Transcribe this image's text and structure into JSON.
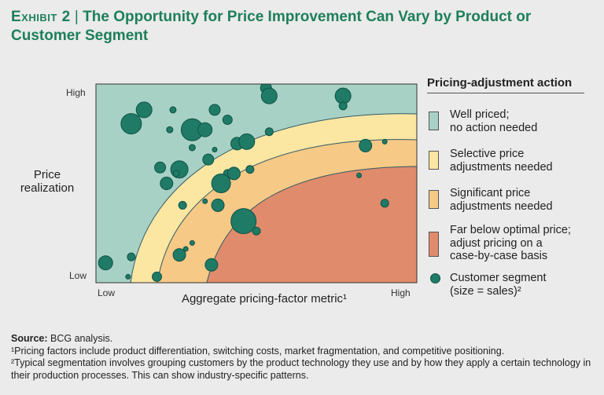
{
  "title": {
    "exhibit": "Exhibit 2",
    "separator": "|",
    "text": "The Opportunity for Price Improvement Can Vary by Product or Customer Segment"
  },
  "chart_data": {
    "type": "scatter",
    "title": "The Opportunity for Price Improvement Can Vary by Product or Customer Segment",
    "xlabel": "Aggregate pricing-factor metric¹",
    "ylabel": "Price realization",
    "x_ticks": [
      "Low",
      "High"
    ],
    "y_ticks": [
      "High",
      "Low"
    ],
    "xlim": [
      0,
      100
    ],
    "ylim": [
      0,
      100
    ],
    "zones": [
      {
        "name": "Well priced; no action needed",
        "color": "#a8d1c6"
      },
      {
        "name": "Selective price adjustments needed",
        "color": "#fbe6a2"
      },
      {
        "name": "Significant price adjustments needed",
        "color": "#f7c986"
      },
      {
        "name": "Far below optimal price; adjust pricing on a case-by-case basis",
        "color": "#e08b6b"
      }
    ],
    "series": [
      {
        "name": "Customer segment (size = sales)",
        "color": "#1f7a66",
        "points": [
          {
            "x": 11,
            "y": 80,
            "size": 13
          },
          {
            "x": 15,
            "y": 87,
            "size": 10
          },
          {
            "x": 24,
            "y": 87,
            "size": 4
          },
          {
            "x": 23,
            "y": 77,
            "size": 4
          },
          {
            "x": 30,
            "y": 77,
            "size": 14
          },
          {
            "x": 34,
            "y": 77,
            "size": 9
          },
          {
            "x": 37,
            "y": 87,
            "size": 7
          },
          {
            "x": 30,
            "y": 68,
            "size": 4
          },
          {
            "x": 35,
            "y": 62,
            "size": 7
          },
          {
            "x": 20,
            "y": 58,
            "size": 7
          },
          {
            "x": 26,
            "y": 57,
            "size": 11
          },
          {
            "x": 22,
            "y": 50,
            "size": 8
          },
          {
            "x": 25,
            "y": 55,
            "size": 4
          },
          {
            "x": 37,
            "y": 67,
            "size": 3
          },
          {
            "x": 41,
            "y": 82,
            "size": 6
          },
          {
            "x": 44,
            "y": 70,
            "size": 8
          },
          {
            "x": 47,
            "y": 71,
            "size": 10
          },
          {
            "x": 41,
            "y": 55,
            "size": 5
          },
          {
            "x": 43,
            "y": 55,
            "size": 8
          },
          {
            "x": 39,
            "y": 50,
            "size": 12
          },
          {
            "x": 48,
            "y": 57,
            "size": 5
          },
          {
            "x": 54,
            "y": 76,
            "size": 5
          },
          {
            "x": 53,
            "y": 98,
            "size": 7
          },
          {
            "x": 54,
            "y": 94,
            "size": 10
          },
          {
            "x": 77,
            "y": 94,
            "size": 10
          },
          {
            "x": 77,
            "y": 89,
            "size": 5
          },
          {
            "x": 84,
            "y": 69,
            "size": 8
          },
          {
            "x": 90,
            "y": 71,
            "size": 3
          },
          {
            "x": 82,
            "y": 54,
            "size": 3
          },
          {
            "x": 90,
            "y": 40,
            "size": 5
          },
          {
            "x": 27,
            "y": 39,
            "size": 5
          },
          {
            "x": 34,
            "y": 41,
            "size": 3
          },
          {
            "x": 38,
            "y": 39,
            "size": 8
          },
          {
            "x": 46,
            "y": 31,
            "size": 16
          },
          {
            "x": 50,
            "y": 26,
            "size": 5
          },
          {
            "x": 3,
            "y": 10,
            "size": 9
          },
          {
            "x": 11,
            "y": 13,
            "size": 5
          },
          {
            "x": 10,
            "y": 3,
            "size": 3
          },
          {
            "x": 19,
            "y": 3,
            "size": 6
          },
          {
            "x": 26,
            "y": 14,
            "size": 8
          },
          {
            "x": 30,
            "y": 20,
            "size": 3
          },
          {
            "x": 28,
            "y": 17,
            "size": 3
          },
          {
            "x": 36,
            "y": 9,
            "size": 8
          }
        ]
      }
    ],
    "legend": {
      "title": "Pricing-adjustment action",
      "position": "right"
    }
  },
  "legend": {
    "title": "Pricing-adjustment action",
    "items": [
      {
        "line1": "Well priced;",
        "line2": "no action needed",
        "line3": ""
      },
      {
        "line1": "Selective price",
        "line2": "adjustments needed",
        "line3": ""
      },
      {
        "line1": "Significant price",
        "line2": "adjustments needed",
        "line3": ""
      },
      {
        "line1": "Far below optimal price;",
        "line2": "adjust pricing on a",
        "line3": "case-by-case basis"
      },
      {
        "line1": "Customer segment",
        "line2": "(size = sales)²",
        "line3": ""
      }
    ]
  },
  "axes": {
    "y_label_line1": "Price",
    "y_label_line2": "realization",
    "x_label": "Aggregate pricing-factor metric¹",
    "y_high": "High",
    "y_low": "Low",
    "x_low": "Low",
    "x_high": "High"
  },
  "footnotes": {
    "source_label": "Source:",
    "source_text": " BCG analysis.",
    "note1": "¹Pricing factors include product differentiation, switching costs, market fragmentation, and competitive positioning.",
    "note2": "²Typical segmentation involves grouping customers by the product technology they use and by how they apply a certain technology in their production processes. This can show industry-specific patterns."
  }
}
